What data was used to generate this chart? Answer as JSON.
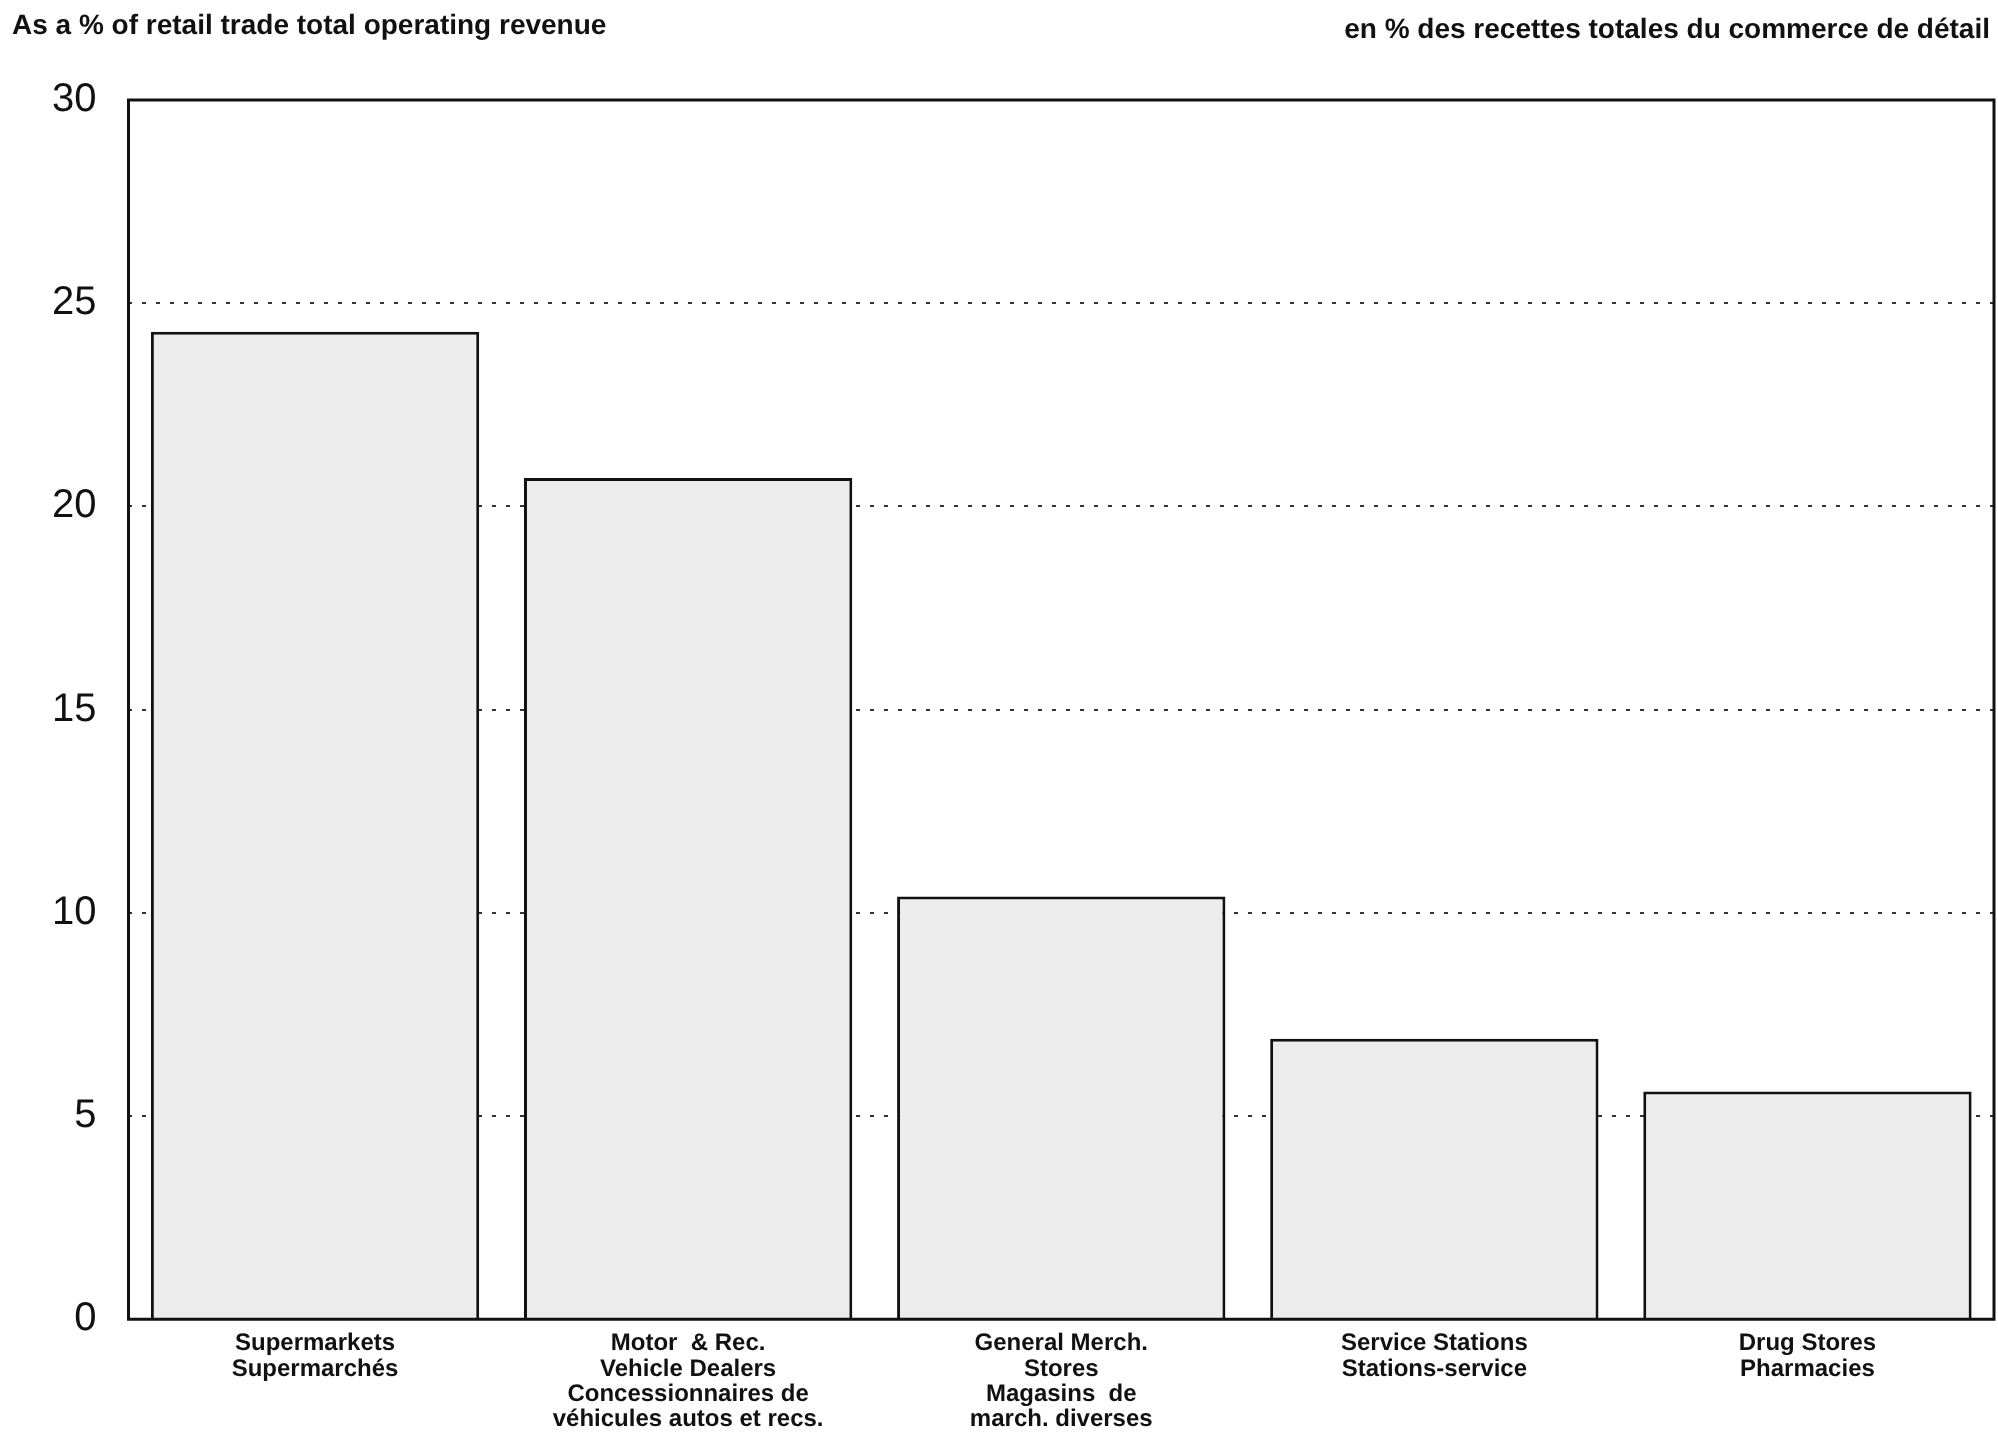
{
  "chart_data": {
    "type": "bar",
    "title": "As a % of retail trade total operating revenue",
    "subtitle": "en % des recettes totales du commerce de détail",
    "categories": [
      "Supermarkets\nSupermarchés",
      "Motor  & Rec.\nVehicle Dealers\nConcessionnaires de\nvéhicules autos et recs.",
      "General Merch.\nStores\nMagasins  de\nmarch. diverses",
      "Service Stations\nStations-service",
      "Drug Stores\nPharmacies"
    ],
    "values": [
      24.3,
      20.7,
      10.4,
      6.9,
      5.6
    ],
    "color": "#ececec",
    "ylim": [
      0,
      30
    ],
    "yticks": [
      0,
      5,
      10,
      15,
      20,
      25,
      30
    ],
    "grid": "y",
    "legend": false
  }
}
